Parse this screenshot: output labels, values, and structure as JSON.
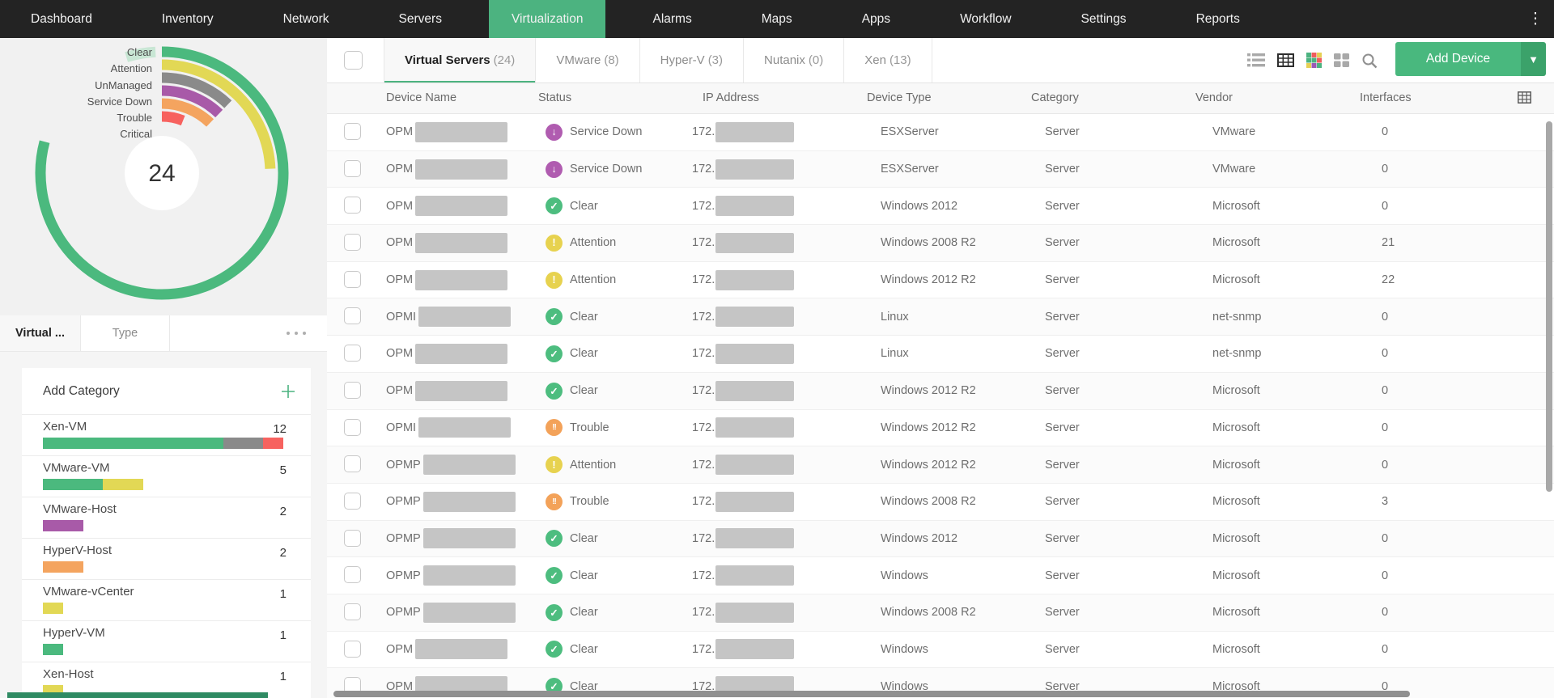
{
  "colors": {
    "accent_green": "#4cb380",
    "nav_bg": "#232323"
  },
  "nav": {
    "items": [
      "Dashboard",
      "Inventory",
      "Network",
      "Servers",
      "Virtualization",
      "Alarms",
      "Maps",
      "Apps",
      "Workflow",
      "Settings",
      "Reports"
    ],
    "active": "Virtualization"
  },
  "sidebar": {
    "chart_data": {
      "type": "radial-bar",
      "total_label": "24",
      "legend_position": "left",
      "max_sweep_deg": 285,
      "series": [
        {
          "name": "Clear",
          "value": 13,
          "color": "#4bb97e"
        },
        {
          "name": "Attention",
          "value": 4,
          "color": "#e2d855"
        },
        {
          "name": "UnManaged",
          "value": 2,
          "color": "#8a8a8a"
        },
        {
          "name": "Service Down",
          "value": 2,
          "color": "#a85aa8"
        },
        {
          "name": "Trouble",
          "value": 2,
          "color": "#f4a45f"
        },
        {
          "name": "Critical",
          "value": 1,
          "color": "#f7625f"
        }
      ]
    },
    "tabs": [
      {
        "label": "Virtual ...",
        "active": true
      },
      {
        "label": "Type",
        "active": false
      }
    ],
    "add_category_label": "Add Category",
    "categories": [
      {
        "name": "Xen-VM",
        "count": 12,
        "segments": [
          {
            "status": "Clear",
            "color": "#4bb97e",
            "value": 9
          },
          {
            "status": "UnManaged",
            "color": "#8a8a8a",
            "value": 2
          },
          {
            "status": "Critical",
            "color": "#f7625f",
            "value": 1
          }
        ]
      },
      {
        "name": "VMware-VM",
        "count": 5,
        "segments": [
          {
            "status": "Clear",
            "color": "#4bb97e",
            "value": 3
          },
          {
            "status": "Attention",
            "color": "#e2d855",
            "value": 2
          }
        ]
      },
      {
        "name": "VMware-Host",
        "count": 2,
        "segments": [
          {
            "status": "Service Down",
            "color": "#a85aa8",
            "value": 2
          }
        ]
      },
      {
        "name": "HyperV-Host",
        "count": 2,
        "segments": [
          {
            "status": "Trouble",
            "color": "#f4a45f",
            "value": 2
          }
        ]
      },
      {
        "name": "VMware-vCenter",
        "count": 1,
        "segments": [
          {
            "status": "Attention",
            "color": "#e2d855",
            "value": 1
          }
        ]
      },
      {
        "name": "HyperV-VM",
        "count": 1,
        "segments": [
          {
            "status": "Clear",
            "color": "#4bb97e",
            "value": 1
          }
        ]
      },
      {
        "name": "Xen-Host",
        "count": 1,
        "segments": [
          {
            "status": "Attention",
            "color": "#e2d855",
            "value": 1
          }
        ]
      }
    ]
  },
  "main": {
    "tabs": [
      {
        "label": "Virtual Servers",
        "count": 24,
        "active": true
      },
      {
        "label": "VMware",
        "count": 8,
        "active": false
      },
      {
        "label": "Hyper-V",
        "count": 3,
        "active": false
      },
      {
        "label": "Nutanix",
        "count": 0,
        "active": false
      },
      {
        "label": "Xen",
        "count": 13,
        "active": false
      }
    ],
    "toolbar_icons": [
      "list-view",
      "table-view",
      "heatmap-view",
      "tile-view",
      "search"
    ],
    "active_view": "table-view",
    "add_device": {
      "label": "Add Device"
    },
    "table": {
      "columns": [
        "Device Name",
        "Status",
        "IP Address",
        "Device Type",
        "Category",
        "Vendor",
        "Interfaces"
      ],
      "rows": [
        {
          "name_prefix": "OPM",
          "name_redacted": true,
          "status": "Service Down",
          "ip_prefix": "172.",
          "ip_redacted": true,
          "device_type": "ESXServer",
          "category": "Server",
          "vendor": "VMware",
          "interfaces": "0"
        },
        {
          "name_prefix": "OPM",
          "name_redacted": true,
          "status": "Service Down",
          "ip_prefix": "172.",
          "ip_redacted": true,
          "device_type": "ESXServer",
          "category": "Server",
          "vendor": "VMware",
          "interfaces": "0"
        },
        {
          "name_prefix": "OPM",
          "name_redacted": true,
          "status": "Clear",
          "ip_prefix": "172.",
          "ip_redacted": true,
          "device_type": "Windows 2012",
          "category": "Server",
          "vendor": "Microsoft",
          "interfaces": "0"
        },
        {
          "name_prefix": "OPM",
          "name_redacted": true,
          "status": "Attention",
          "ip_prefix": "172.",
          "ip_redacted": true,
          "device_type": "Windows 2008 R2",
          "category": "Server",
          "vendor": "Microsoft",
          "interfaces": "21"
        },
        {
          "name_prefix": "OPM",
          "name_redacted": true,
          "status": "Attention",
          "ip_prefix": "172.",
          "ip_redacted": true,
          "device_type": "Windows 2012 R2",
          "category": "Server",
          "vendor": "Microsoft",
          "interfaces": "22"
        },
        {
          "name_prefix": "OPMI",
          "name_redacted": true,
          "status": "Clear",
          "ip_prefix": "172.",
          "ip_redacted": true,
          "device_type": "Linux",
          "category": "Server",
          "vendor": "net-snmp",
          "interfaces": "0"
        },
        {
          "name_prefix": "OPM",
          "name_redacted": true,
          "status": "Clear",
          "ip_prefix": "172.",
          "ip_redacted": true,
          "device_type": "Linux",
          "category": "Server",
          "vendor": "net-snmp",
          "interfaces": "0"
        },
        {
          "name_prefix": "OPM",
          "name_redacted": true,
          "status": "Clear",
          "ip_prefix": "172.",
          "ip_redacted": true,
          "device_type": "Windows 2012 R2",
          "category": "Server",
          "vendor": "Microsoft",
          "interfaces": "0"
        },
        {
          "name_prefix": "OPMI",
          "name_redacted": true,
          "status": "Trouble",
          "ip_prefix": "172.",
          "ip_redacted": true,
          "device_type": "Windows 2012 R2",
          "category": "Server",
          "vendor": "Microsoft",
          "interfaces": "0"
        },
        {
          "name_prefix": "OPMP",
          "name_redacted": true,
          "status": "Attention",
          "ip_prefix": "172.",
          "ip_redacted": true,
          "device_type": "Windows 2012 R2",
          "category": "Server",
          "vendor": "Microsoft",
          "interfaces": "0"
        },
        {
          "name_prefix": "OPMP",
          "name_redacted": true,
          "status": "Trouble",
          "ip_prefix": "172.",
          "ip_redacted": true,
          "device_type": "Windows 2008 R2",
          "category": "Server",
          "vendor": "Microsoft",
          "interfaces": "3"
        },
        {
          "name_prefix": "OPMP",
          "name_redacted": true,
          "status": "Clear",
          "ip_prefix": "172.",
          "ip_redacted": true,
          "device_type": "Windows 2012",
          "category": "Server",
          "vendor": "Microsoft",
          "interfaces": "0"
        },
        {
          "name_prefix": "OPMP",
          "name_redacted": true,
          "status": "Clear",
          "ip_prefix": "172.",
          "ip_redacted": true,
          "device_type": "Windows",
          "category": "Server",
          "vendor": "Microsoft",
          "interfaces": "0"
        },
        {
          "name_prefix": "OPMP",
          "name_redacted": true,
          "status": "Clear",
          "ip_prefix": "172.",
          "ip_redacted": true,
          "device_type": "Windows 2008 R2",
          "category": "Server",
          "vendor": "Microsoft",
          "interfaces": "0"
        },
        {
          "name_prefix": "OPM",
          "name_redacted": true,
          "status": "Clear",
          "ip_prefix": "172.",
          "ip_redacted": true,
          "device_type": "Windows",
          "category": "Server",
          "vendor": "Microsoft",
          "interfaces": "0"
        },
        {
          "name_prefix": "OPM",
          "name_redacted": true,
          "status": "Clear",
          "ip_prefix": "172.",
          "ip_redacted": true,
          "device_type": "Windows",
          "category": "Server",
          "vendor": "Microsoft",
          "interfaces": "0"
        }
      ]
    }
  },
  "status_styles": {
    "Clear": {
      "color": "#4dbd7f",
      "glyph": "✓"
    },
    "Attention": {
      "color": "#e7d24f",
      "glyph": "!"
    },
    "Trouble": {
      "color": "#f3a259",
      "glyph": "!!"
    },
    "Service Down": {
      "color": "#b05cb0",
      "glyph": "↓"
    }
  }
}
